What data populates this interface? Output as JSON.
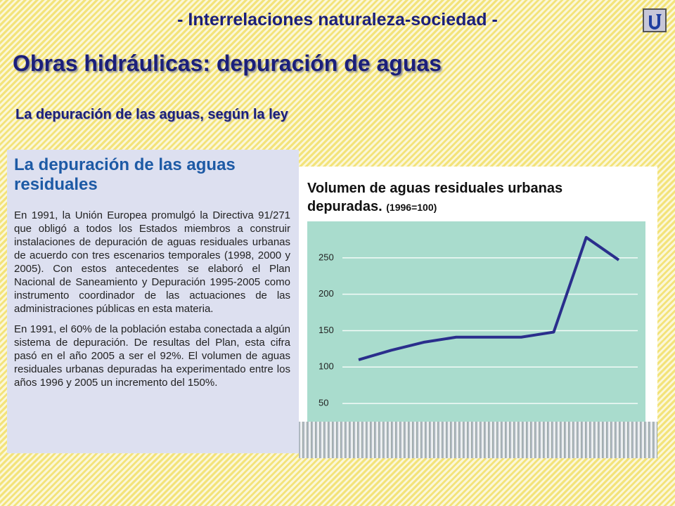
{
  "header": {
    "title": "- Interrelaciones naturaleza-sociedad -"
  },
  "title": "Obras hidráulicas: depuración de aguas",
  "subtitle": "La depuración de las aguas, según la ley",
  "panel": {
    "heading": "La depuración de las aguas residuales",
    "paragraphs": [
      "En 1991, la Unión Europea promulgó la Directiva 91/271 que obligó a todos los Estados miembros a construir instalaciones de depuración de aguas residuales urbanas de acuerdo con tres escenarios temporales (1998, 2000 y 2005). Con estos antecedentes se elaboró el Plan Nacional de Saneamiento y Depuración 1995-2005 como instrumento coordinador de las actuaciones de las administraciones públicas en esta materia.",
      "En 1991, el 60% de la población estaba conectada a algún sistema de depuración. De resultas del Plan, esta cifra pasó en el año 2005 a ser el 92%. El volumen de aguas residuales urbanas depuradas ha experimentado entre los años 1996 y 2005 un incremento del 150%."
    ]
  },
  "chart_data": {
    "type": "line",
    "title": "Volumen de aguas residuales urbanas depuradas.",
    "subtitle": "(1996=100)",
    "categories": [
      null,
      null,
      null,
      null,
      null,
      null,
      null,
      null,
      null
    ],
    "series": [
      {
        "name": null,
        "color": "#2a2e8c",
        "values": [
          110,
          123,
          134,
          141,
          141,
          141,
          148,
          278,
          247
        ]
      }
    ],
    "ylim": [
      25,
      300
    ],
    "yticks": [
      50,
      100,
      150,
      200,
      250
    ],
    "grid": true
  }
}
